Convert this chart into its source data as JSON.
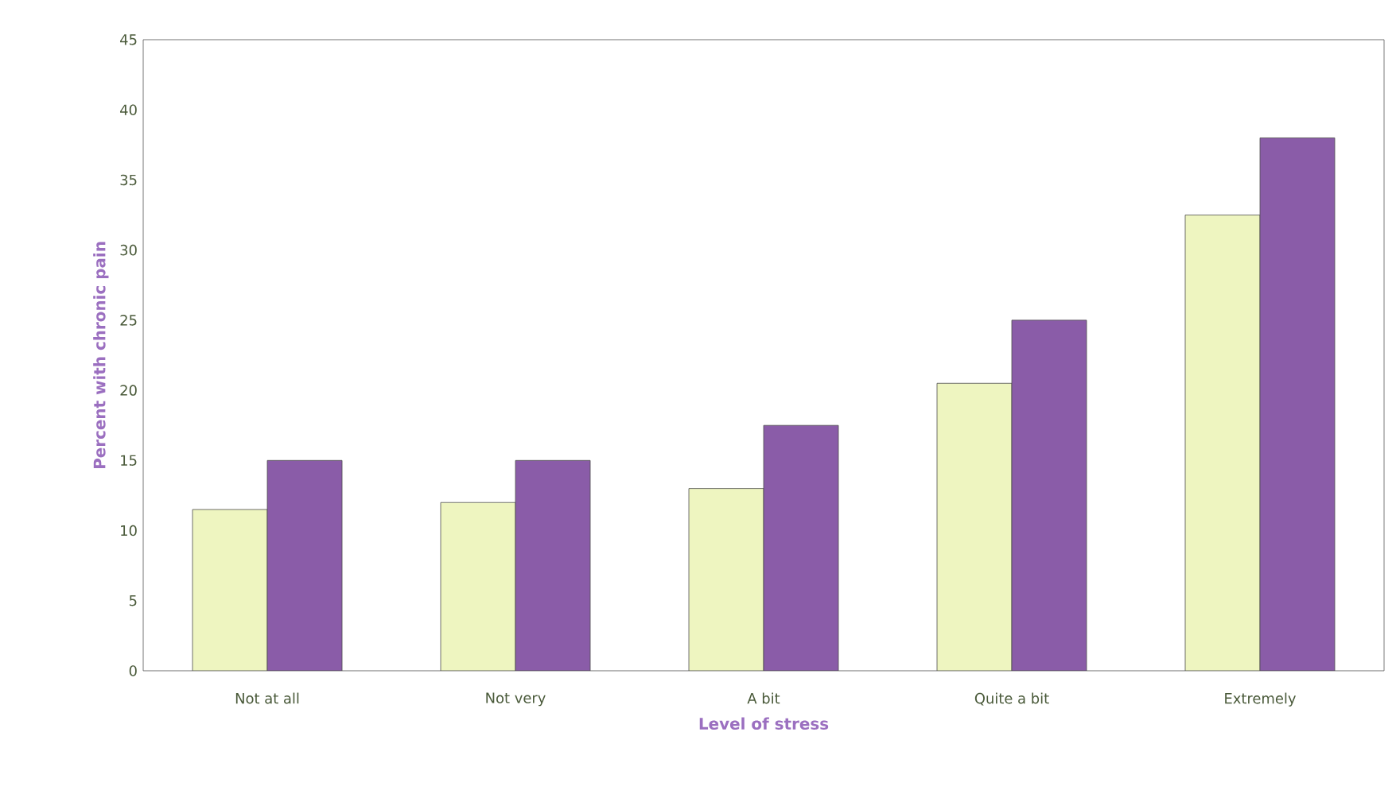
{
  "chart_data": {
    "type": "bar",
    "xlabel": "Level of stress",
    "ylabel": "Percent with chronic pain",
    "categories": [
      "Not at all",
      "Not very",
      "A bit",
      "Quite a bit",
      "Extremely"
    ],
    "series": [
      {
        "color": "#eef5c0",
        "values": [
          11.5,
          12,
          13,
          20.5,
          32.5
        ]
      },
      {
        "color": "#8a5ca8",
        "values": [
          15,
          15,
          17.5,
          25,
          38
        ]
      }
    ],
    "ylim": [
      0,
      45
    ],
    "yticks": [
      0,
      5,
      10,
      15,
      20,
      25,
      30,
      35,
      40,
      45
    ],
    "grid": false
  }
}
